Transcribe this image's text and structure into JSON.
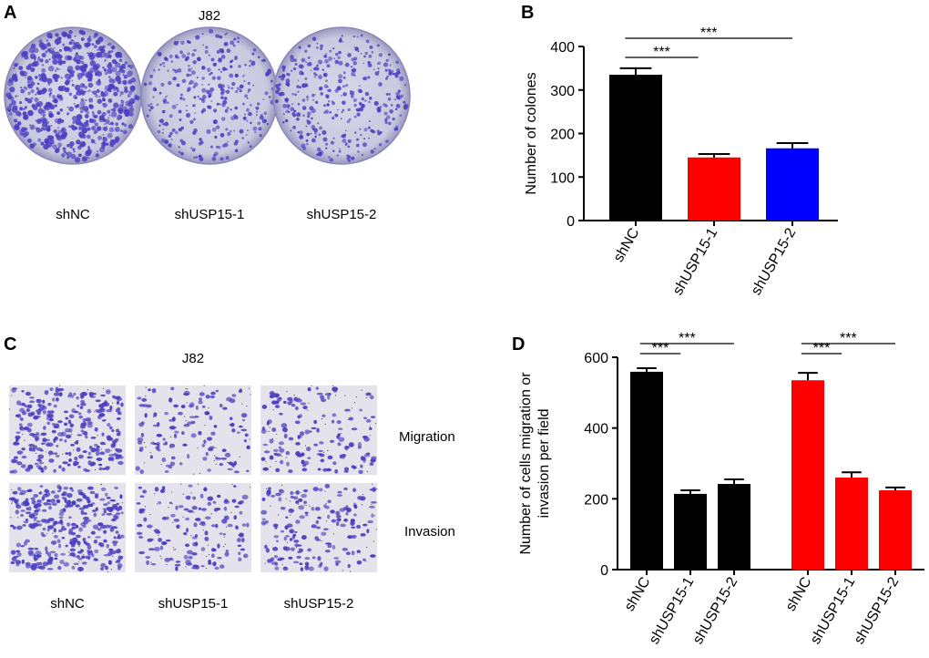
{
  "panels": {
    "A": {
      "letter": "A",
      "title": "J82",
      "labels": [
        "shNC",
        "shUSP15-1",
        "shUSP15-2"
      ],
      "colony_density": [
        0.9,
        0.45,
        0.5
      ]
    },
    "C": {
      "letter": "C",
      "title": "J82",
      "labels": [
        "shNC",
        "shUSP15-1",
        "shUSP15-2"
      ],
      "row_labels": [
        "Migration",
        "Invasion"
      ]
    },
    "B": {
      "letter": "B"
    },
    "D": {
      "letter": "D"
    }
  },
  "colors": {
    "black": "#000000",
    "red": "#ff0000",
    "blue": "#0000ff",
    "stain": "#4b3fc0"
  },
  "chart_data": [
    {
      "id": "B",
      "type": "bar",
      "ylabel": "Number of colones",
      "ylim": [
        0,
        400
      ],
      "yticks": [
        0,
        100,
        200,
        300,
        400
      ],
      "categories": [
        "shNC",
        "shUSP15-1",
        "shUSP15-2"
      ],
      "values": [
        335,
        145,
        166
      ],
      "errors": [
        15,
        8,
        12
      ],
      "bar_colors": [
        "#000000",
        "#ff0000",
        "#0000ff"
      ],
      "significance": [
        {
          "from": 0,
          "to": 1,
          "label": "***"
        },
        {
          "from": 0,
          "to": 2,
          "label": "***"
        }
      ]
    },
    {
      "id": "D",
      "type": "bar",
      "ylabel": [
        "Number of cells migration or",
        "invasion per field"
      ],
      "ylim": [
        0,
        600
      ],
      "yticks": [
        0,
        200,
        400,
        600
      ],
      "categories": [
        "shNC",
        "shUSP15-1",
        "shUSP15-2",
        "shNC",
        "shUSP15-1",
        "shUSP15-2"
      ],
      "values": [
        559,
        214,
        242,
        535,
        260,
        224
      ],
      "errors": [
        10,
        10,
        13,
        21,
        15,
        8
      ],
      "bar_colors": [
        "#000000",
        "#000000",
        "#000000",
        "#ff0000",
        "#ff0000",
        "#ff0000"
      ],
      "significance": [
        {
          "from": 0,
          "to": 1,
          "label": "***"
        },
        {
          "from": 0,
          "to": 2,
          "label": "***"
        },
        {
          "from": 3,
          "to": 4,
          "label": "***"
        },
        {
          "from": 3,
          "to": 5,
          "label": "***"
        }
      ]
    }
  ]
}
